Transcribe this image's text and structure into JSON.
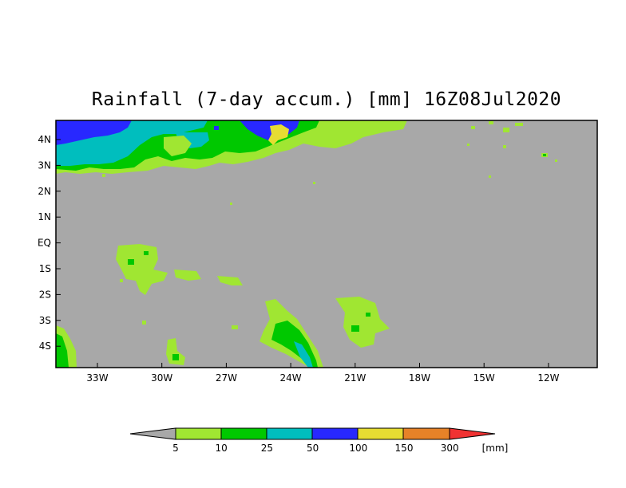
{
  "title": "Rainfall (7-day accum.) [mm] 16Z08Jul2020",
  "colors": {
    "background_gray": "#a8a8a8",
    "lt_green": "#a0e632",
    "green": "#00c800",
    "teal": "#00bebe",
    "blue": "#2828ff",
    "yellow": "#e6dc32",
    "orange": "#e68228",
    "red": "#f03232",
    "frame": "#000000"
  },
  "lat_labels": [
    "4N",
    "3N",
    "2N",
    "1N",
    "EQ",
    "1S",
    "2S",
    "3S",
    "4S"
  ],
  "lon_labels": [
    "33W",
    "30W",
    "27W",
    "24W",
    "21W",
    "18W",
    "15W",
    "12W"
  ],
  "colorbar": {
    "labels": [
      "5",
      "10",
      "25",
      "50",
      "100",
      "150",
      "300"
    ],
    "unit": "[mm]"
  }
}
